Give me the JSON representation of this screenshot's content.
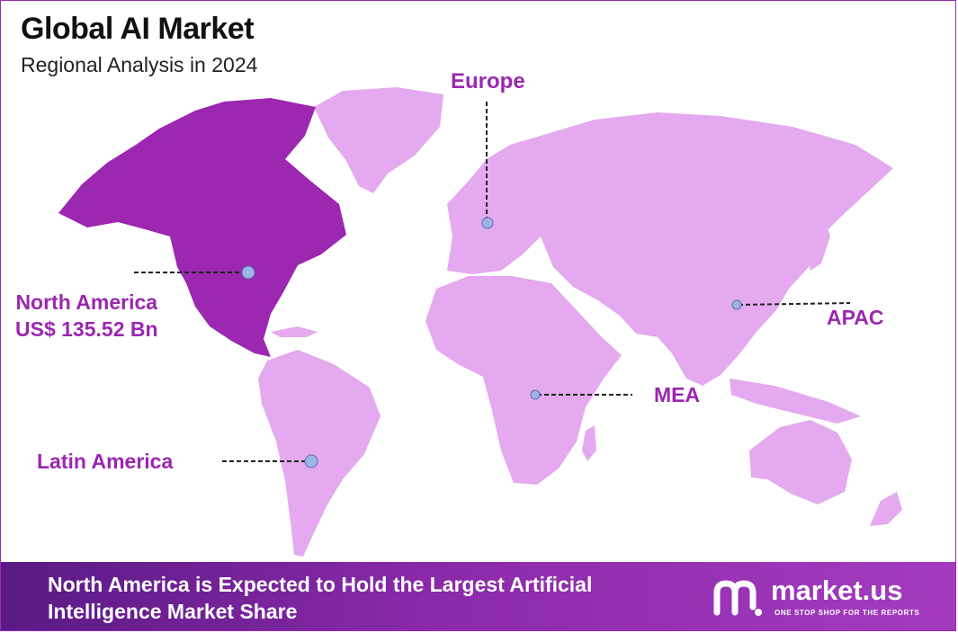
{
  "header": {
    "title": "Global AI Market",
    "subtitle": "Regional Analysis in 2024"
  },
  "regions": {
    "europe": "Europe",
    "north_america": "North America",
    "north_america_value": "US$ 135.52 Bn",
    "latin_america": "Latin America",
    "mea": "MEA",
    "apac": "APAC"
  },
  "footer": {
    "line1": "North America is Expected to Hold the Largest Artificial",
    "line2": "Intelligence Market Share"
  },
  "brand": {
    "name": "market.us",
    "tagline": "ONE STOP SHOP FOR THE REPORTS"
  },
  "colors": {
    "highlight_region": "#9c27b0",
    "other_regions": "#e4a9ee",
    "label_color": "#9b27b0",
    "footer_bg": "#8a2aa8",
    "marker": "#9fb4e6"
  }
}
